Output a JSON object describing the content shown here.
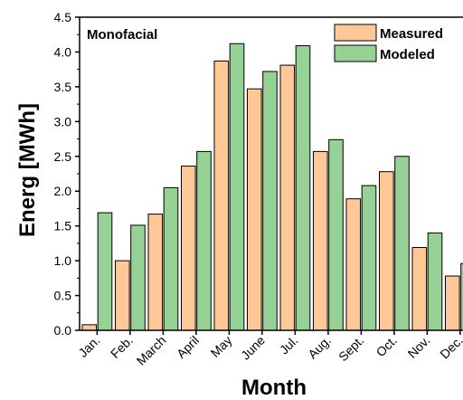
{
  "chart_data": {
    "type": "bar",
    "annotation": "Monofacial",
    "xlabel": "Month",
    "ylabel": "Energ [MWh]",
    "ylim": [
      0,
      4.5
    ],
    "yticks": [
      "0.0",
      "0.5",
      "1.0",
      "1.5",
      "2.0",
      "2.5",
      "3.0",
      "3.5",
      "4.0",
      "4.5"
    ],
    "categories": [
      "Jan.",
      "Feb.",
      "March",
      "April",
      "May",
      "June",
      "Jul.",
      "Aug.",
      "Sept.",
      "Oct.",
      "Nov.",
      "Dec."
    ],
    "legend_position": "top-right",
    "series": [
      {
        "name": "Measured",
        "color": "#FFC896",
        "values": [
          0.08,
          1.0,
          1.67,
          2.36,
          3.87,
          3.47,
          3.81,
          2.57,
          1.89,
          2.28,
          1.19,
          0.78
        ]
      },
      {
        "name": "Modeled",
        "color": "#96D296",
        "values": [
          1.69,
          1.51,
          2.05,
          2.57,
          4.12,
          3.72,
          4.09,
          2.74,
          2.08,
          2.5,
          1.4,
          0.96
        ]
      }
    ]
  }
}
